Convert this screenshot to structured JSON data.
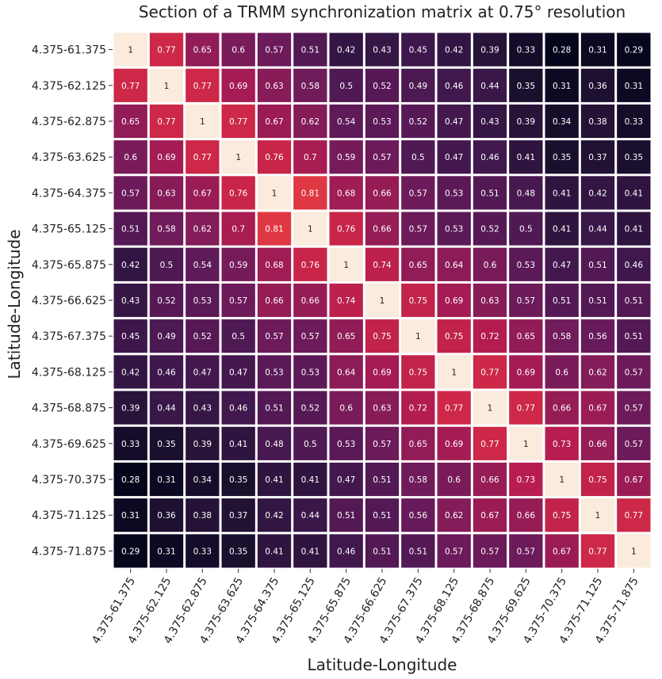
{
  "chart_data": {
    "type": "heatmap",
    "title": "Section of a TRMM synchronization matrix at 0.75° resolution",
    "xlabel": "Latitude-Longitude",
    "ylabel": "Latitude-Longitude",
    "labels": [
      "4.375-61.375",
      "4.375-62.125",
      "4.375-62.875",
      "4.375-63.625",
      "4.375-64.375",
      "4.375-65.125",
      "4.375-65.875",
      "4.375-66.625",
      "4.375-67.375",
      "4.375-68.125",
      "4.375-68.875",
      "4.375-69.625",
      "4.375-70.375",
      "4.375-71.125",
      "4.375-71.875"
    ],
    "values": [
      [
        1,
        0.77,
        0.65,
        0.6,
        0.57,
        0.51,
        0.42,
        0.43,
        0.45,
        0.42,
        0.39,
        0.33,
        0.28,
        0.31,
        0.29
      ],
      [
        0.77,
        1,
        0.77,
        0.69,
        0.63,
        0.58,
        0.5,
        0.52,
        0.49,
        0.46,
        0.44,
        0.35,
        0.31,
        0.36,
        0.31
      ],
      [
        0.65,
        0.77,
        1,
        0.77,
        0.67,
        0.62,
        0.54,
        0.53,
        0.52,
        0.47,
        0.43,
        0.39,
        0.34,
        0.38,
        0.33
      ],
      [
        0.6,
        0.69,
        0.77,
        1,
        0.76,
        0.7,
        0.59,
        0.57,
        0.5,
        0.47,
        0.46,
        0.41,
        0.35,
        0.37,
        0.35
      ],
      [
        0.57,
        0.63,
        0.67,
        0.76,
        1,
        0.81,
        0.68,
        0.66,
        0.57,
        0.53,
        0.51,
        0.48,
        0.41,
        0.42,
        0.41
      ],
      [
        0.51,
        0.58,
        0.62,
        0.7,
        0.81,
        1,
        0.76,
        0.66,
        0.57,
        0.53,
        0.52,
        0.5,
        0.41,
        0.44,
        0.41
      ],
      [
        0.42,
        0.5,
        0.54,
        0.59,
        0.68,
        0.76,
        1,
        0.74,
        0.65,
        0.64,
        0.6,
        0.53,
        0.47,
        0.51,
        0.46
      ],
      [
        0.43,
        0.52,
        0.53,
        0.57,
        0.66,
        0.66,
        0.74,
        1,
        0.75,
        0.69,
        0.63,
        0.57,
        0.51,
        0.51,
        0.51
      ],
      [
        0.45,
        0.49,
        0.52,
        0.5,
        0.57,
        0.57,
        0.65,
        0.75,
        1,
        0.75,
        0.72,
        0.65,
        0.58,
        0.56,
        0.51
      ],
      [
        0.42,
        0.46,
        0.47,
        0.47,
        0.53,
        0.53,
        0.64,
        0.69,
        0.75,
        1,
        0.77,
        0.69,
        0.6,
        0.62,
        0.57
      ],
      [
        0.39,
        0.44,
        0.43,
        0.46,
        0.51,
        0.52,
        0.6,
        0.63,
        0.72,
        0.77,
        1,
        0.77,
        0.66,
        0.67,
        0.57
      ],
      [
        0.33,
        0.35,
        0.39,
        0.41,
        0.48,
        0.5,
        0.53,
        0.57,
        0.65,
        0.69,
        0.77,
        1,
        0.73,
        0.66,
        0.57
      ],
      [
        0.28,
        0.31,
        0.34,
        0.35,
        0.41,
        0.41,
        0.47,
        0.51,
        0.58,
        0.6,
        0.66,
        0.73,
        1,
        0.75,
        0.67
      ],
      [
        0.31,
        0.36,
        0.38,
        0.37,
        0.42,
        0.44,
        0.51,
        0.51,
        0.56,
        0.62,
        0.67,
        0.66,
        0.75,
        1,
        0.77
      ],
      [
        0.29,
        0.31,
        0.33,
        0.35,
        0.41,
        0.41,
        0.46,
        0.51,
        0.51,
        0.57,
        0.57,
        0.57,
        0.67,
        0.77,
        1
      ]
    ],
    "colormap": "rocket",
    "value_range": [
      0.28,
      1
    ],
    "grid": false,
    "legend": "none"
  }
}
